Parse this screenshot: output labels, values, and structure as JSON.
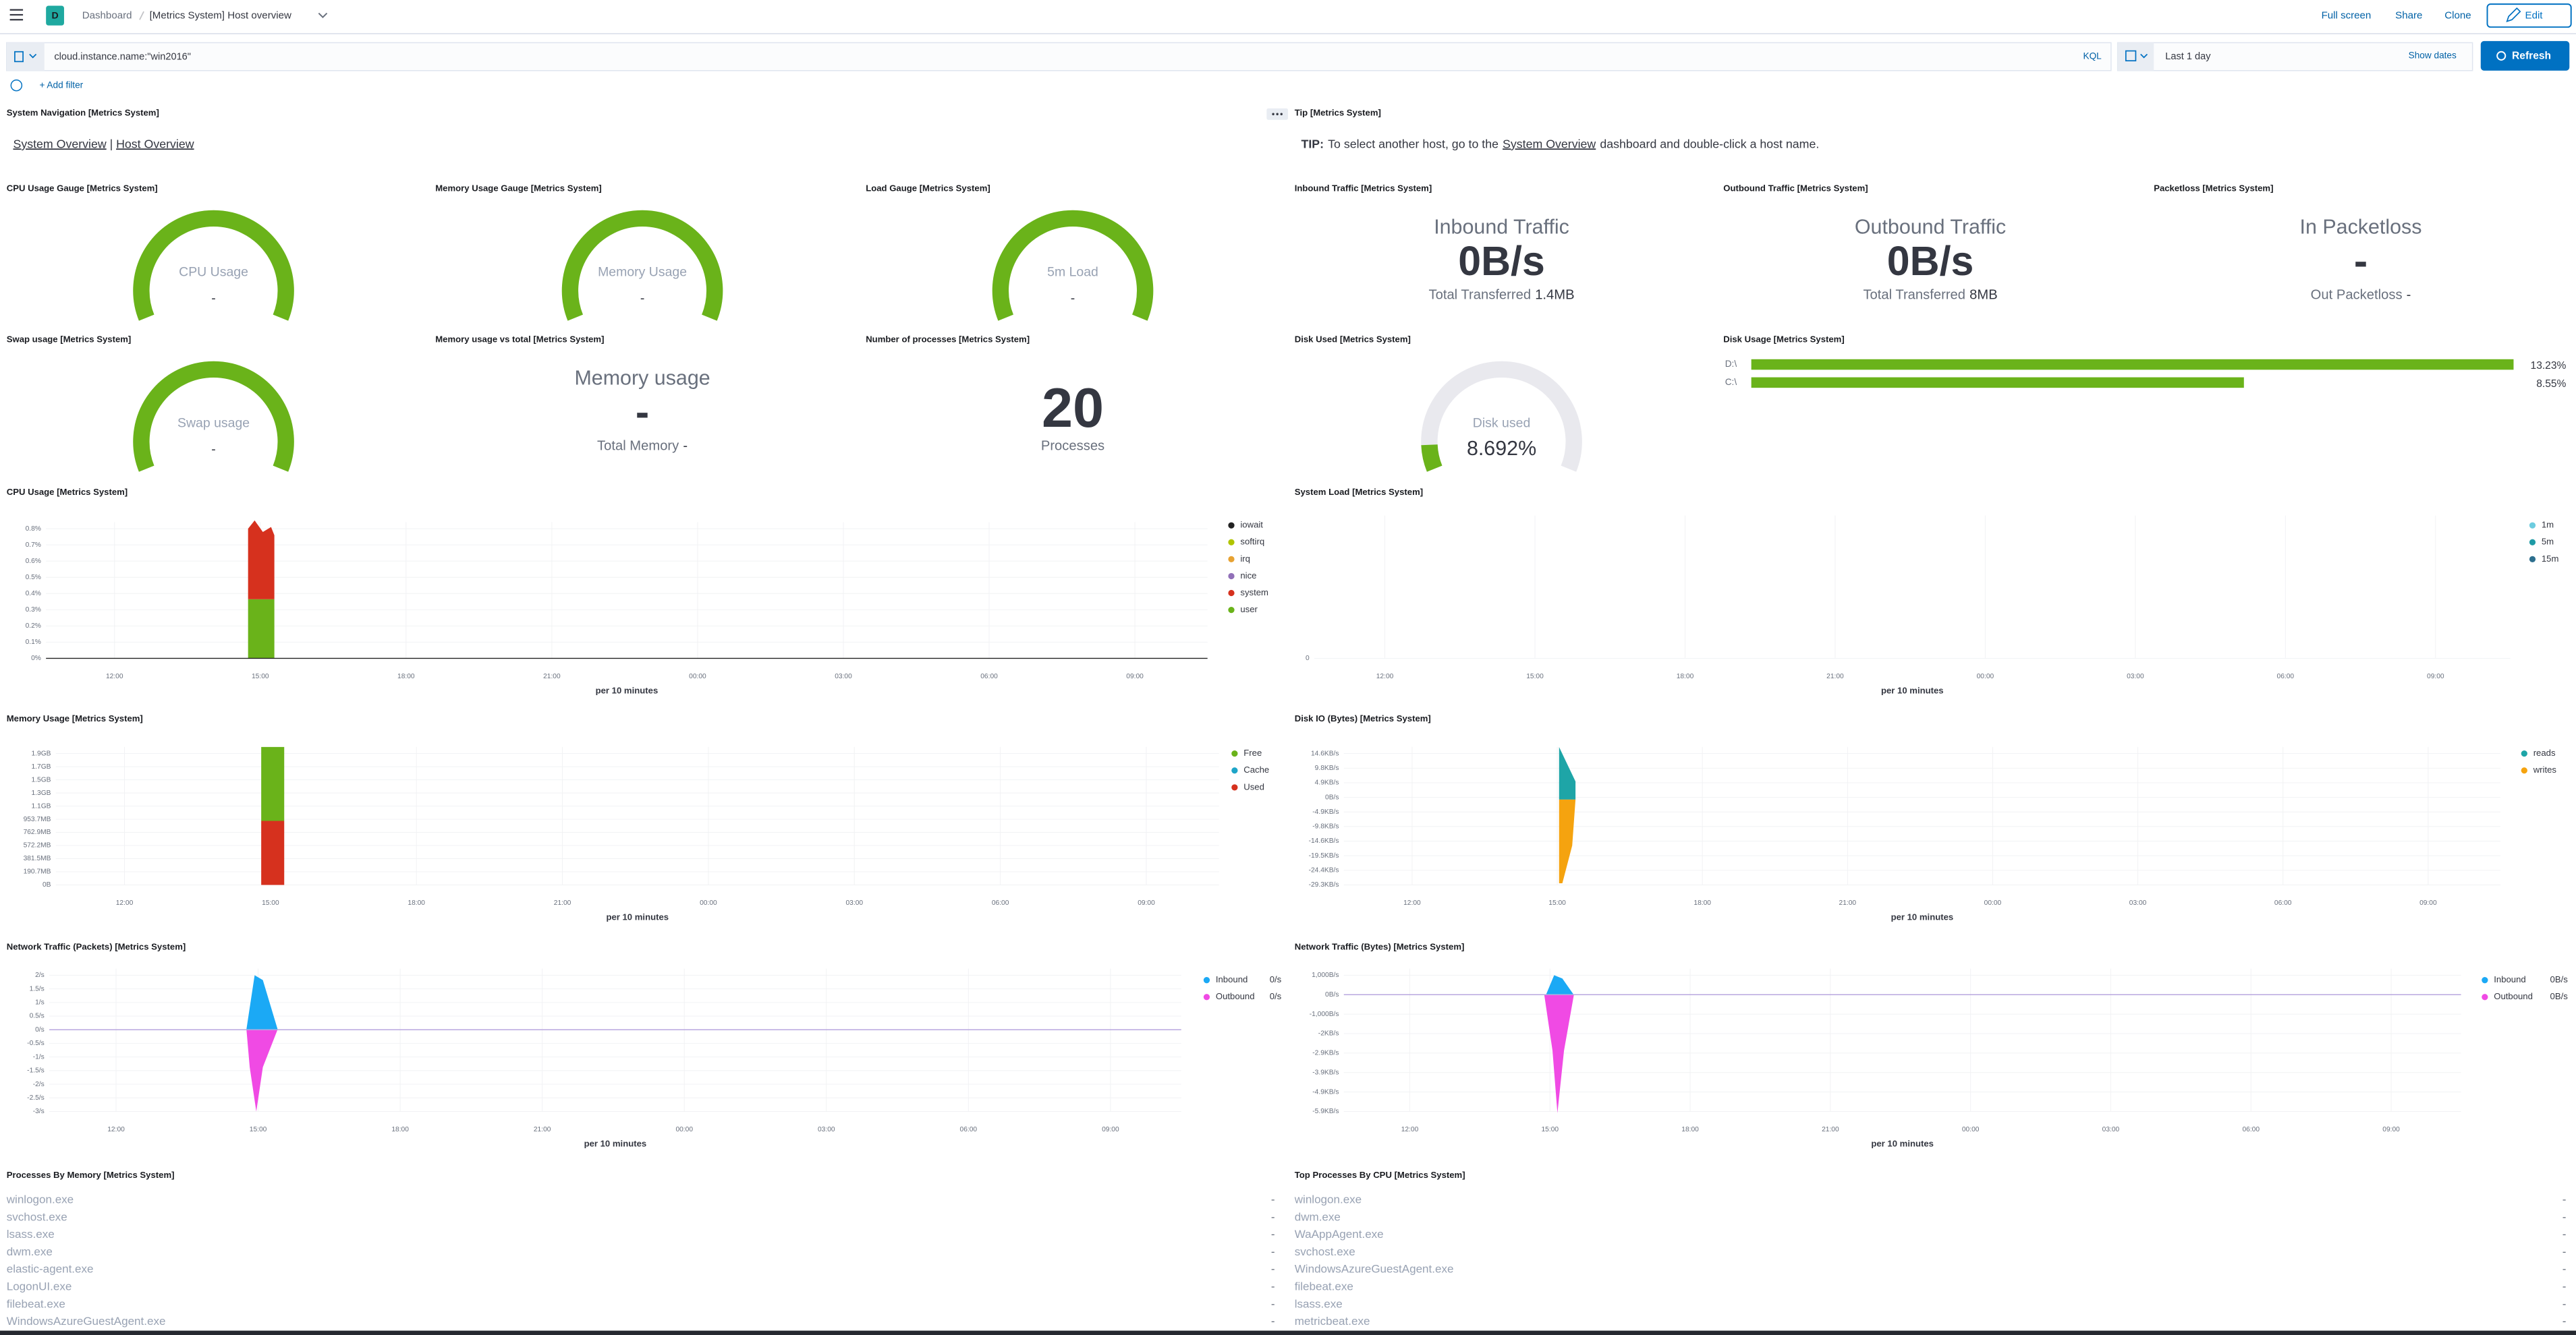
{
  "header": {
    "avatar": "D",
    "breadcrumbs": [
      "Dashboard",
      "[Metrics System] Host overview"
    ],
    "actions": [
      "Full screen",
      "Share",
      "Clone"
    ],
    "edit": "Edit"
  },
  "query": {
    "text": "cloud.instance.name:\"win2016\"",
    "language": "KQL",
    "time": "Last 1 day",
    "show_dates": "Show dates",
    "refresh": "Refresh",
    "add_filter": "+ Add filter"
  },
  "panels": [
    {
      "title": "System Navigation [Metrics System]",
      "links": [
        "System Overview",
        "Host Overview"
      ],
      "separator": "|"
    },
    {
      "title": "Tip [Metrics System]",
      "lead": "TIP:",
      "text": "To select another host, go to the",
      "link": "System Overview",
      "text_after": "dashboard and double-click a host name."
    },
    {
      "title": "CPU Usage Gauge [Metrics System]",
      "label": "CPU Usage",
      "value": "-"
    },
    {
      "title": "Memory Usage Gauge [Metrics System]",
      "label": "Memory Usage",
      "value": "-"
    },
    {
      "title": "Load Gauge [Metrics System]",
      "label": "5m Load",
      "value": "-"
    },
    {
      "title": "Inbound Traffic [Metrics System]",
      "heading": "Inbound Traffic",
      "value": "0B/s",
      "sub_label": "Total Transferred",
      "sub_value": "1.4MB"
    },
    {
      "title": "Outbound Traffic [Metrics System]",
      "heading": "Outbound Traffic",
      "value": "0B/s",
      "sub_label": "Total Transferred",
      "sub_value": "8MB"
    },
    {
      "title": "Packetloss [Metrics System]",
      "heading": "In Packetloss",
      "value": "-",
      "sub_label": "Out Packetloss",
      "sub_value": "-"
    },
    {
      "title": "Swap usage [Metrics System]",
      "label": "Swap usage",
      "value": "-"
    },
    {
      "title": "Memory usage vs total [Metrics System]",
      "heading": "Memory usage",
      "value": "-",
      "sub_label": "Total Memory",
      "sub_value": "-"
    },
    {
      "title": "Number of processes [Metrics System]",
      "value": "20",
      "sub_label": "Processes"
    },
    {
      "title": "Disk Used [Metrics System]",
      "label": "Disk used",
      "value": "8.692%"
    },
    {
      "title": "Disk Usage [Metrics System]",
      "bars": [
        {
          "label": "D:\\",
          "value": "13.23%"
        },
        {
          "label": "C:\\",
          "value": "8.55%"
        }
      ]
    },
    {
      "title": "CPU Usage [Metrics System]",
      "yticks": [
        "0.8%",
        "0.7%",
        "0.6%",
        "0.5%",
        "0.4%",
        "0.3%",
        "0.2%",
        "0.1%",
        "0%"
      ],
      "xticks": [
        "12:00",
        "15:00",
        "18:00",
        "21:00",
        "00:00",
        "03:00",
        "06:00",
        "09:00"
      ],
      "x_label": "per 10 minutes",
      "legend": [
        {
          "name": "iowait",
          "color": "#222222"
        },
        {
          "name": "softirq",
          "color": "#b0c400"
        },
        {
          "name": "irq",
          "color": "#e7a232"
        },
        {
          "name": "nice",
          "color": "#9170b8"
        },
        {
          "name": "system",
          "color": "#d6311e"
        },
        {
          "name": "user",
          "color": "#6ab31a"
        }
      ]
    },
    {
      "title": "System Load [Metrics System]",
      "yticks": [
        "0"
      ],
      "xticks": [
        "12:00",
        "15:00",
        "18:00",
        "21:00",
        "00:00",
        "03:00",
        "06:00",
        "09:00"
      ],
      "x_label": "per 10 minutes",
      "legend": [
        {
          "name": "1m",
          "color": "#6dccdf"
        },
        {
          "name": "5m",
          "color": "#1f9ba6"
        },
        {
          "name": "15m",
          "color": "#2d6f8e"
        }
      ]
    },
    {
      "title": "Memory Usage [Metrics System]",
      "yticks": [
        "1.9GB",
        "1.7GB",
        "1.5GB",
        "1.3GB",
        "1.1GB",
        "953.7MB",
        "762.9MB",
        "572.2MB",
        "381.5MB",
        "190.7MB",
        "0B"
      ],
      "xticks": [
        "12:00",
        "15:00",
        "18:00",
        "21:00",
        "00:00",
        "03:00",
        "06:00",
        "09:00"
      ],
      "x_label": "per 10 minutes",
      "legend": [
        {
          "name": "Free",
          "color": "#6ab31a"
        },
        {
          "name": "Cache",
          "color": "#1ea5c8"
        },
        {
          "name": "Used",
          "color": "#d6311e"
        }
      ]
    },
    {
      "title": "Disk IO (Bytes) [Metrics System]",
      "yticks": [
        "14.6KB/s",
        "9.8KB/s",
        "4.9KB/s",
        "0B/s",
        "-4.9KB/s",
        "-9.8KB/s",
        "-14.6KB/s",
        "-19.5KB/s",
        "-24.4KB/s",
        "-29.3KB/s"
      ],
      "xticks": [
        "12:00",
        "15:00",
        "18:00",
        "21:00",
        "00:00",
        "03:00",
        "06:00",
        "09:00"
      ],
      "x_label": "per 10 minutes",
      "legend": [
        {
          "name": "reads",
          "color": "#1ea5a7"
        },
        {
          "name": "writes",
          "color": "#f5a30f"
        }
      ]
    },
    {
      "title": "Network Traffic (Packets) [Metrics System]",
      "yticks": [
        "2/s",
        "1.5/s",
        "1/s",
        "0.5/s",
        "0/s",
        "-0.5/s",
        "-1/s",
        "-1.5/s",
        "-2/s",
        "-2.5/s",
        "-3/s"
      ],
      "xticks": [
        "12:00",
        "15:00",
        "18:00",
        "21:00",
        "00:00",
        "03:00",
        "06:00",
        "09:00"
      ],
      "x_label": "per 10 minutes",
      "legend": [
        {
          "name": "Inbound",
          "color": "#1ba9f5",
          "value": "0/s"
        },
        {
          "name": "Outbound",
          "color": "#f04ae4",
          "value": "0/s"
        }
      ]
    },
    {
      "title": "Network Traffic (Bytes) [Metrics System]",
      "yticks": [
        "1,000B/s",
        "0B/s",
        "-1,000B/s",
        "-2KB/s",
        "-2.9KB/s",
        "-3.9KB/s",
        "-4.9KB/s",
        "-5.9KB/s"
      ],
      "xticks": [
        "12:00",
        "15:00",
        "18:00",
        "21:00",
        "00:00",
        "03:00",
        "06:00",
        "09:00"
      ],
      "x_label": "per 10 minutes",
      "legend": [
        {
          "name": "Inbound",
          "color": "#1ba9f5",
          "value": "0B/s"
        },
        {
          "name": "Outbound",
          "color": "#f04ae4",
          "value": "0B/s"
        }
      ]
    },
    {
      "title": "Processes By Memory [Metrics System]",
      "rows": [
        {
          "name": "winlogon.exe",
          "value": "-"
        },
        {
          "name": "svchost.exe",
          "value": "-"
        },
        {
          "name": "lsass.exe",
          "value": "-"
        },
        {
          "name": "dwm.exe",
          "value": "-"
        },
        {
          "name": "elastic-agent.exe",
          "value": "-"
        },
        {
          "name": "LogonUI.exe",
          "value": "-"
        },
        {
          "name": "filebeat.exe",
          "value": "-"
        },
        {
          "name": "WindowsAzureGuestAgent.exe",
          "value": "-"
        }
      ]
    },
    {
      "title": "Top Processes By CPU [Metrics System]",
      "rows": [
        {
          "name": "winlogon.exe",
          "value": "-"
        },
        {
          "name": "dwm.exe",
          "value": "-"
        },
        {
          "name": "WaAppAgent.exe",
          "value": "-"
        },
        {
          "name": "svchost.exe",
          "value": "-"
        },
        {
          "name": "WindowsAzureGuestAgent.exe",
          "value": "-"
        },
        {
          "name": "filebeat.exe",
          "value": "-"
        },
        {
          "name": "lsass.exe",
          "value": "-"
        },
        {
          "name": "metricbeat.exe",
          "value": "-"
        }
      ]
    }
  ]
}
